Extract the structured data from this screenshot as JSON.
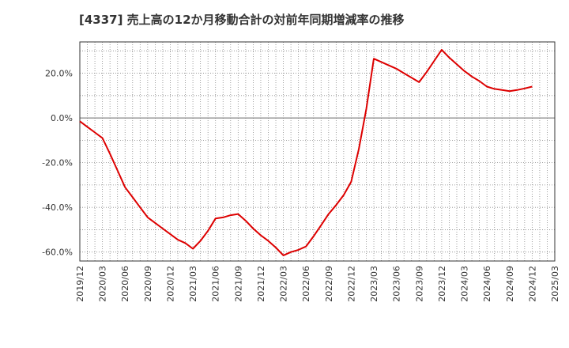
{
  "chart_data": {
    "type": "line",
    "title": "[4337]  売上高の12か月移動合計の対前年同期増減率の推移",
    "xlabel": "",
    "ylabel": "",
    "ylim": [
      -64,
      34
    ],
    "yticks": [
      20,
      0,
      -20,
      -40,
      -60
    ],
    "ytick_labels": [
      "20.0%",
      "0.0%",
      "-20.0%",
      "-40.0%",
      "-60.0%"
    ],
    "xtick_labels": [
      "2019/12",
      "2020/03",
      "2020/06",
      "2020/09",
      "2020/12",
      "2021/03",
      "2021/06",
      "2021/09",
      "2021/12",
      "2022/03",
      "2022/06",
      "2022/09",
      "2022/12",
      "2023/03",
      "2023/06",
      "2023/09",
      "2023/12",
      "2024/03",
      "2024/06",
      "2024/09",
      "2024/12",
      "2025/03"
    ],
    "grid": true,
    "series": [
      {
        "name": "増減率",
        "color": "#dd0000",
        "x": [
          0,
          0.333,
          0.667,
          1,
          1.333,
          1.667,
          2,
          2.333,
          2.667,
          3,
          3.333,
          3.667,
          4,
          4.333,
          4.667,
          5,
          5.333,
          5.667,
          6,
          6.333,
          6.667,
          7,
          7.333,
          7.667,
          8,
          8.333,
          8.667,
          9,
          9.333,
          9.667,
          10,
          10.333,
          10.667,
          11,
          11.333,
          11.667,
          12,
          12.333,
          12.667,
          13,
          13.333,
          13.667,
          14,
          14.333,
          14.667,
          15,
          15.333,
          15.667,
          16,
          16.333,
          16.667,
          17,
          17.333,
          17.667,
          18,
          18.333,
          18.667,
          19,
          19.333,
          19.667,
          20
        ],
        "values": [
          -1.5,
          -4,
          -6.5,
          -9,
          -16,
          -23.5,
          -31,
          -35.5,
          -40,
          -44.5,
          -47,
          -49.5,
          -52,
          -54.5,
          -56,
          -58.5,
          -55,
          -50.5,
          -45,
          -44.5,
          -43.5,
          -43,
          -46,
          -49.5,
          -52.5,
          -55,
          -58,
          -61.5,
          -60,
          -59,
          -57.5,
          -53,
          -48,
          -43,
          -39,
          -34.5,
          -28.5,
          -14,
          4,
          26.5,
          25,
          23.5,
          22,
          20,
          18,
          16,
          20.5,
          25.5,
          30.5,
          27,
          24,
          21,
          18.5,
          16.5,
          14,
          13,
          12.5,
          12,
          12.5,
          13.2,
          14
        ]
      }
    ]
  }
}
